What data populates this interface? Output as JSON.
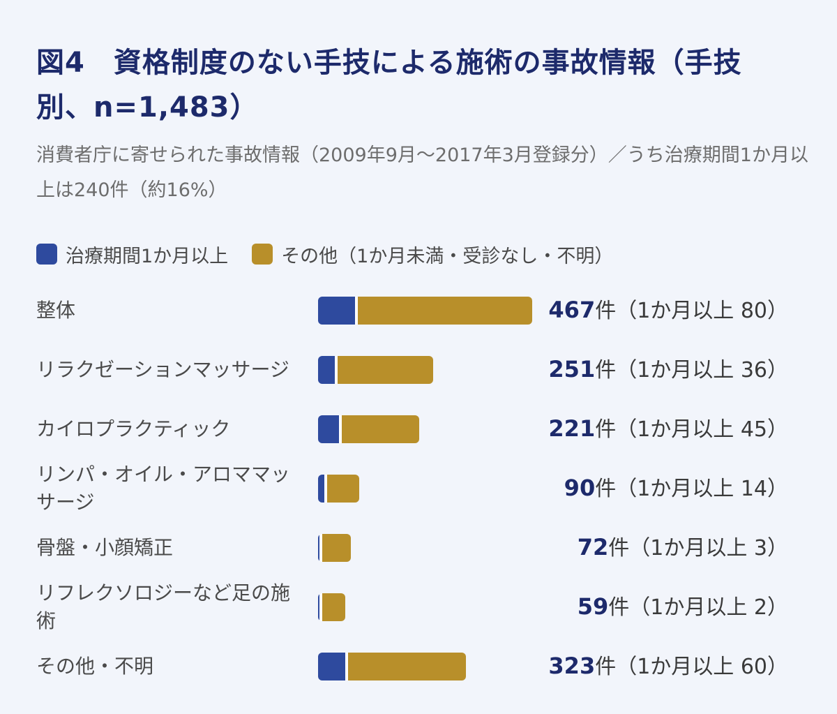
{
  "title": "図4　資格制度のない手技による施術の事故情報（手技別、n=1,483）",
  "subtitle": "消費者庁に寄せられた事故情報（2009年9月～2017年3月登録分）／うち治療期間1か月以上は240件（約16%）",
  "legend": [
    {
      "label": "治療期間1か月以上",
      "color": "#2e4a9e"
    },
    {
      "label": "その他（1か月未満・受診なし・不明）",
      "color": "#b88f2a"
    }
  ],
  "chart_data": {
    "type": "bar",
    "orientation": "horizontal",
    "stacked": true,
    "categories": [
      "整体",
      "リラクゼーションマッサージ",
      "カイロプラクティック",
      "リンパ・オイル・アロママッサージ",
      "骨盤・小顔矯正",
      "リフレクソロジーなど足の施術",
      "その他・不明"
    ],
    "series": [
      {
        "name": "治療期間1か月以上",
        "color": "#2e4a9e",
        "values": [
          80,
          36,
          45,
          14,
          3,
          2,
          60
        ]
      },
      {
        "name": "その他（1か月未満・受診なし・不明）",
        "color": "#b88f2a",
        "values": [
          387,
          215,
          176,
          76,
          69,
          57,
          263
        ]
      }
    ],
    "totals": [
      467,
      251,
      221,
      90,
      72,
      59,
      323
    ],
    "total_labels": [
      "467",
      "251",
      "221",
      "90",
      "72",
      "59",
      "323"
    ],
    "value_suffixes": [
      "件（1か月以上 80）",
      "件（1か月以上 36）",
      "件（1か月以上 45）",
      "件（1か月以上 14）",
      "件（1か月以上 3）",
      "件（1か月以上 2）",
      "件（1か月以上 60）"
    ],
    "xlim": [
      0,
      467
    ],
    "grid": false,
    "legend_position": "top-left"
  }
}
